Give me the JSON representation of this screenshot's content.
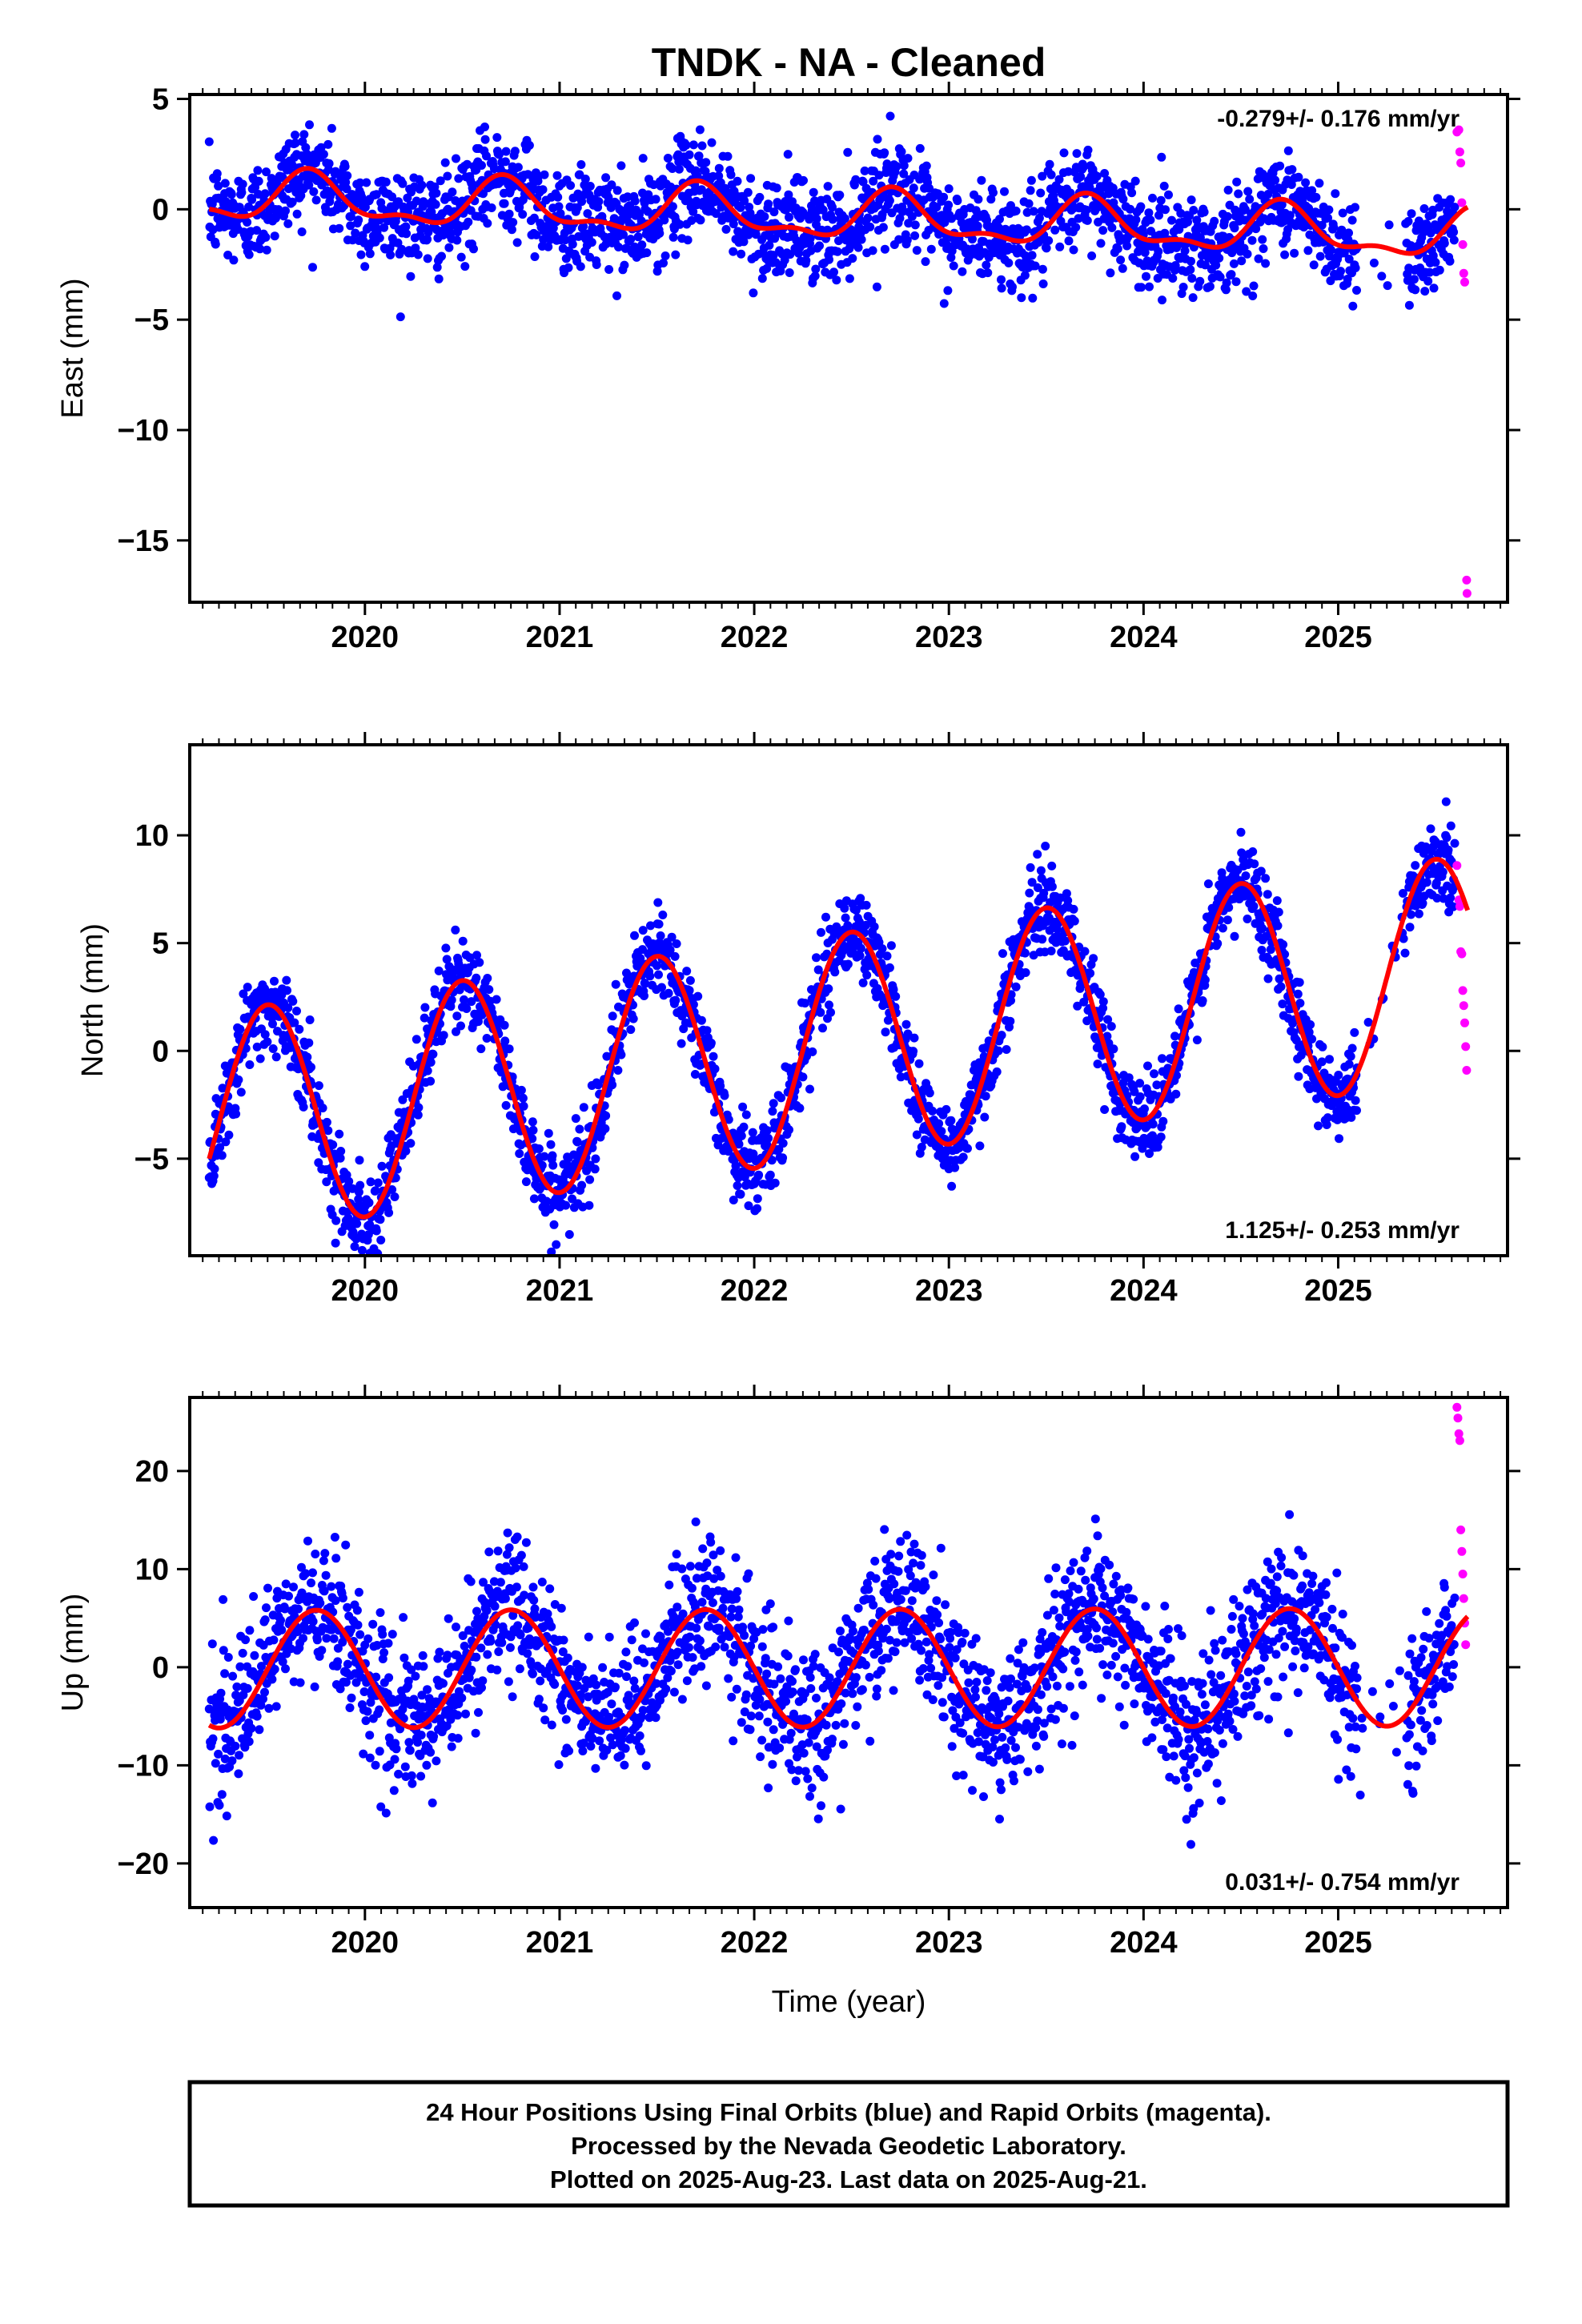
{
  "title": "TNDK  - NA - Cleaned",
  "xlabel": "Time (year)",
  "caption": [
    "24 Hour Positions Using Final Orbits (blue) and Rapid Orbits (magenta).",
    "Processed by the Nevada Geodetic Laboratory.",
    "Plotted on 2025-Aug-23. Last data on 2025-Aug-21."
  ],
  "colors": {
    "final": "#0000ff",
    "rapid": "#ff00ff",
    "model": "#ff0000",
    "frame": "#000000"
  },
  "chart_data": [
    {
      "type": "scatter",
      "ylabel": "East (mm)",
      "rate_label": "-0.279+/- 0.176 mm/yr",
      "xlim": [
        2019.1,
        2025.87
      ],
      "ylim": [
        -17.8,
        5.2
      ],
      "xticks": [
        2020,
        2021,
        2022,
        2023,
        2024,
        2025
      ],
      "yticks": [
        5,
        0,
        -5,
        -10,
        -15
      ],
      "model": {
        "mean": 0.55,
        "rate": -0.279,
        "t0": 2019.2,
        "annual_amp": 1.0,
        "annual_phase_year": 2019.72,
        "semi_amp": 0.45,
        "semi_phase_year": 2019.7,
        "noise_sd": 1.1
      },
      "final_series": {
        "name": "Final Orbits",
        "t_start": 2019.2,
        "t_end": 2025.6,
        "gap": [
          2025.1,
          2025.35
        ]
      },
      "rapid_series": {
        "name": "Rapid Orbits",
        "t": [
          2025.61,
          2025.62,
          2025.625,
          2025.63,
          2025.635,
          2025.64,
          2025.645,
          2025.65,
          2025.66,
          2025.662
        ],
        "y": [
          3.5,
          3.6,
          2.6,
          2.1,
          0.3,
          -1.6,
          -2.9,
          -3.3,
          -16.8,
          -17.4
        ]
      }
    },
    {
      "type": "scatter",
      "ylabel": "North (mm)",
      "rate_label": "1.125+/- 0.253 mm/yr",
      "xlim": [
        2019.1,
        2025.87
      ],
      "ylim": [
        -9.5,
        14.2
      ],
      "xticks": [
        2020,
        2021,
        2022,
        2023,
        2024,
        2025
      ],
      "yticks": [
        10,
        5,
        0,
        -5
      ],
      "model": {
        "mean": -3.4,
        "rate": 1.125,
        "t0": 2019.2,
        "annual_amp": 5.2,
        "annual_phase_year": 2019.5,
        "semi_amp": 0.0,
        "semi_phase_year": 2019.5,
        "noise_sd": 1.0
      },
      "final_series": {
        "name": "Final Orbits",
        "t_start": 2019.2,
        "t_end": 2025.6,
        "gap": [
          2025.1,
          2025.35
        ]
      },
      "rapid_series": {
        "name": "Rapid Orbits",
        "t": [
          2025.61,
          2025.62,
          2025.625,
          2025.63,
          2025.635,
          2025.64,
          2025.645,
          2025.65,
          2025.655,
          2025.66
        ],
        "y": [
          8.6,
          7.0,
          6.7,
          4.6,
          4.5,
          2.8,
          2.1,
          1.3,
          0.2,
          -0.9
        ]
      }
    },
    {
      "type": "scatter",
      "ylabel": "Up (mm)",
      "rate_label": "0.031+/- 0.754 mm/yr",
      "xlim": [
        2019.1,
        2025.87
      ],
      "ylim": [
        -24.5,
        27.5
      ],
      "xticks": [
        2020,
        2021,
        2022,
        2023,
        2024,
        2025
      ],
      "yticks": [
        20,
        10,
        0,
        -10,
        -20
      ],
      "model": {
        "mean": -0.2,
        "rate": 0.031,
        "t0": 2019.2,
        "annual_amp": 6.0,
        "annual_phase_year": 2019.75,
        "semi_amp": 0.0,
        "semi_phase_year": 2019.75,
        "noise_sd": 3.6
      },
      "final_series": {
        "name": "Final Orbits",
        "t_start": 2019.2,
        "t_end": 2025.6,
        "gap": [
          2025.1,
          2025.35
        ]
      },
      "rapid_series": {
        "name": "Rapid Orbits",
        "t": [
          2025.61,
          2025.615,
          2025.62,
          2025.625,
          2025.63,
          2025.635,
          2025.64,
          2025.645,
          2025.65,
          2025.655
        ],
        "y": [
          26.5,
          25.4,
          23.8,
          23.1,
          14.0,
          11.8,
          9.5,
          7.0,
          4.5,
          2.3
        ]
      }
    }
  ]
}
